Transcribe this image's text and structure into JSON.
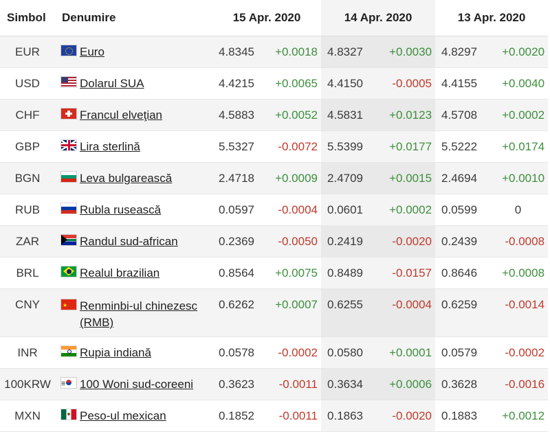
{
  "header": {
    "symbol": "Simbol",
    "name": "Denumire",
    "date1": "15 Apr. 2020",
    "date2": "14 Apr. 2020",
    "date3": "13 Apr. 2020"
  },
  "rows": [
    {
      "symbol": "EUR",
      "name": "Euro",
      "flag": "eu-flag-icon",
      "v1": "4.8345",
      "c1": "+0.0018",
      "v2": "4.8327",
      "c2": "+0.0030",
      "v3": "4.8297",
      "c3": "+0.0020"
    },
    {
      "symbol": "USD",
      "name": "Dolarul SUA",
      "flag": "us-flag-icon",
      "v1": "4.4215",
      "c1": "+0.0065",
      "v2": "4.4150",
      "c2": "-0.0005",
      "v3": "4.4155",
      "c3": "+0.0040"
    },
    {
      "symbol": "CHF",
      "name": "Francul elveţian",
      "flag": "ch-flag-icon",
      "v1": "4.5883",
      "c1": "+0.0052",
      "v2": "4.5831",
      "c2": "+0.0123",
      "v3": "4.5708",
      "c3": "+0.0002"
    },
    {
      "symbol": "GBP",
      "name": "Lira sterlină",
      "flag": "gb-flag-icon",
      "v1": "5.5327",
      "c1": "-0.0072",
      "v2": "5.5399",
      "c2": "+0.0177",
      "v3": "5.5222",
      "c3": "+0.0174"
    },
    {
      "symbol": "BGN",
      "name": "Leva bulgarească",
      "flag": "bg-flag-icon",
      "v1": "2.4718",
      "c1": "+0.0009",
      "v2": "2.4709",
      "c2": "+0.0015",
      "v3": "2.4694",
      "c3": "+0.0010"
    },
    {
      "symbol": "RUB",
      "name": "Rubla rusească",
      "flag": "ru-flag-icon",
      "v1": "0.0597",
      "c1": "-0.0004",
      "v2": "0.0601",
      "c2": "+0.0002",
      "v3": "0.0599",
      "c3": "0"
    },
    {
      "symbol": "ZAR",
      "name": "Randul sud-african",
      "flag": "za-flag-icon",
      "v1": "0.2369",
      "c1": "-0.0050",
      "v2": "0.2419",
      "c2": "-0.0020",
      "v3": "0.2439",
      "c3": "-0.0008"
    },
    {
      "symbol": "BRL",
      "name": "Realul brazilian",
      "flag": "br-flag-icon",
      "v1": "0.8564",
      "c1": "+0.0075",
      "v2": "0.8489",
      "c2": "-0.0157",
      "v3": "0.8646",
      "c3": "+0.0008"
    },
    {
      "symbol": "CNY",
      "name": "Renminbi-ul chinezesc (RMB)",
      "flag": "cn-flag-icon",
      "v1": "0.6262",
      "c1": "+0.0007",
      "v2": "0.6255",
      "c2": "-0.0004",
      "v3": "0.6259",
      "c3": "-0.0014"
    },
    {
      "symbol": "INR",
      "name": "Rupia indiană",
      "flag": "in-flag-icon",
      "v1": "0.0578",
      "c1": "-0.0002",
      "v2": "0.0580",
      "c2": "+0.0001",
      "v3": "0.0579",
      "c3": "-0.0002"
    },
    {
      "symbol": "100KRW",
      "name": "100 Woni sud-coreeni",
      "flag": "kr-flag-icon",
      "v1": "0.3623",
      "c1": "-0.0011",
      "v2": "0.3634",
      "c2": "+0.0006",
      "v3": "0.3628",
      "c3": "-0.0016"
    },
    {
      "symbol": "MXN",
      "name": "Peso-ul mexican",
      "flag": "mx-flag-icon",
      "v1": "0.1852",
      "c1": "-0.0011",
      "v2": "0.1863",
      "c2": "-0.0020",
      "v3": "0.1883",
      "c3": "+0.0012"
    }
  ],
  "colors": {
    "positive": "#3d8f3d",
    "negative": "#c0392b",
    "highlight_column": "#ececec"
  }
}
